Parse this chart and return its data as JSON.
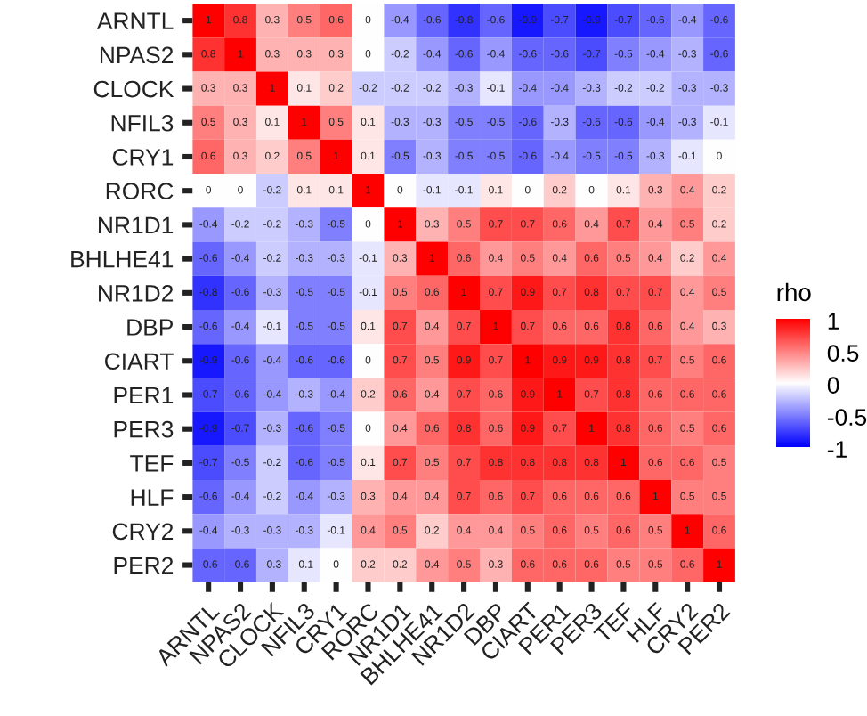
{
  "chart_data": {
    "type": "heatmap",
    "clabel": "rho",
    "clim": [
      -1,
      1
    ],
    "cticks": [
      -1,
      -0.5,
      0,
      0.5,
      1
    ],
    "data_labels": true,
    "categories": [
      "ARNTL",
      "NPAS2",
      "CLOCK",
      "NFIL3",
      "CRY1",
      "RORC",
      "NR1D1",
      "BHLHE41",
      "NR1D2",
      "DBP",
      "CIART",
      "PER1",
      "PER3",
      "TEF",
      "HLF",
      "CRY2",
      "PER2"
    ],
    "y_categories": [
      "ARNTL",
      "NPAS2",
      "CLOCK",
      "NFIL3",
      "CRY1",
      "RORC",
      "NR1D1",
      "BHLHE41",
      "NR1D2",
      "DBP",
      "CIART",
      "PER1",
      "PER3",
      "TEF",
      "HLF",
      "CRY2",
      "PER2"
    ],
    "cells": [
      [
        1,
        0.8,
        0.3,
        0.5,
        0.6,
        0,
        -0.4,
        -0.6,
        -0.8,
        -0.6,
        -0.9,
        -0.7,
        -0.9,
        -0.7,
        -0.6,
        -0.4,
        -0.6
      ],
      [
        0.8,
        1,
        0.3,
        0.3,
        0.3,
        0,
        -0.2,
        -0.4,
        -0.6,
        -0.4,
        -0.6,
        -0.6,
        -0.7,
        -0.5,
        -0.4,
        -0.3,
        -0.6
      ],
      [
        0.3,
        0.3,
        1,
        0.1,
        0.2,
        -0.2,
        -0.2,
        -0.2,
        -0.3,
        -0.1,
        -0.4,
        -0.4,
        -0.3,
        -0.2,
        -0.2,
        -0.3,
        -0.3
      ],
      [
        0.5,
        0.3,
        0.1,
        1,
        0.5,
        0.1,
        -0.3,
        -0.3,
        -0.5,
        -0.5,
        -0.6,
        -0.3,
        -0.6,
        -0.6,
        -0.4,
        -0.3,
        -0.1
      ],
      [
        0.6,
        0.3,
        0.2,
        0.5,
        1,
        0.1,
        -0.5,
        -0.3,
        -0.5,
        -0.5,
        -0.6,
        -0.4,
        -0.5,
        -0.5,
        -0.3,
        -0.1,
        0
      ],
      [
        0,
        0,
        -0.2,
        0.1,
        0.1,
        1,
        0,
        -0.1,
        -0.1,
        0.1,
        0,
        0.2,
        0,
        0.1,
        0.3,
        0.4,
        0.2
      ],
      [
        -0.4,
        -0.2,
        -0.2,
        -0.3,
        -0.5,
        0,
        1,
        0.3,
        0.5,
        0.7,
        0.7,
        0.6,
        0.4,
        0.7,
        0.4,
        0.5,
        0.2
      ],
      [
        -0.6,
        -0.4,
        -0.2,
        -0.3,
        -0.3,
        -0.1,
        0.3,
        1,
        0.6,
        0.4,
        0.5,
        0.4,
        0.6,
        0.5,
        0.4,
        0.2,
        0.4
      ],
      [
        -0.8,
        -0.6,
        -0.3,
        -0.5,
        -0.5,
        -0.1,
        0.5,
        0.6,
        1,
        0.7,
        0.9,
        0.7,
        0.8,
        0.7,
        0.7,
        0.4,
        0.5
      ],
      [
        -0.6,
        -0.4,
        -0.1,
        -0.5,
        -0.5,
        0.1,
        0.7,
        0.4,
        0.7,
        1,
        0.7,
        0.6,
        0.6,
        0.8,
        0.6,
        0.4,
        0.3
      ],
      [
        -0.9,
        -0.6,
        -0.4,
        -0.6,
        -0.6,
        0,
        0.7,
        0.5,
        0.9,
        0.7,
        1,
        0.9,
        0.9,
        0.8,
        0.7,
        0.5,
        0.6
      ],
      [
        -0.7,
        -0.6,
        -0.4,
        -0.3,
        -0.4,
        0.2,
        0.6,
        0.4,
        0.7,
        0.6,
        0.9,
        1,
        0.7,
        0.8,
        0.6,
        0.6,
        0.6
      ],
      [
        -0.9,
        -0.7,
        -0.3,
        -0.6,
        -0.5,
        0,
        0.4,
        0.6,
        0.8,
        0.6,
        0.9,
        0.7,
        1,
        0.8,
        0.6,
        0.5,
        0.6
      ],
      [
        -0.7,
        -0.5,
        -0.2,
        -0.6,
        -0.5,
        0.1,
        0.7,
        0.5,
        0.7,
        0.8,
        0.8,
        0.8,
        0.8,
        1,
        0.6,
        0.6,
        0.5
      ],
      [
        -0.6,
        -0.4,
        -0.2,
        -0.4,
        -0.3,
        0.3,
        0.4,
        0.4,
        0.7,
        0.6,
        0.7,
        0.6,
        0.6,
        0.6,
        1,
        0.5,
        0.5
      ],
      [
        -0.4,
        -0.3,
        -0.3,
        -0.3,
        -0.1,
        0.4,
        0.5,
        0.2,
        0.4,
        0.4,
        0.5,
        0.6,
        0.5,
        0.6,
        0.5,
        1,
        0.6
      ],
      [
        -0.6,
        -0.6,
        -0.3,
        -0.1,
        0,
        0.2,
        0.2,
        0.4,
        0.5,
        0.3,
        0.6,
        0.6,
        0.6,
        0.5,
        0.5,
        0.6,
        1
      ]
    ]
  }
}
